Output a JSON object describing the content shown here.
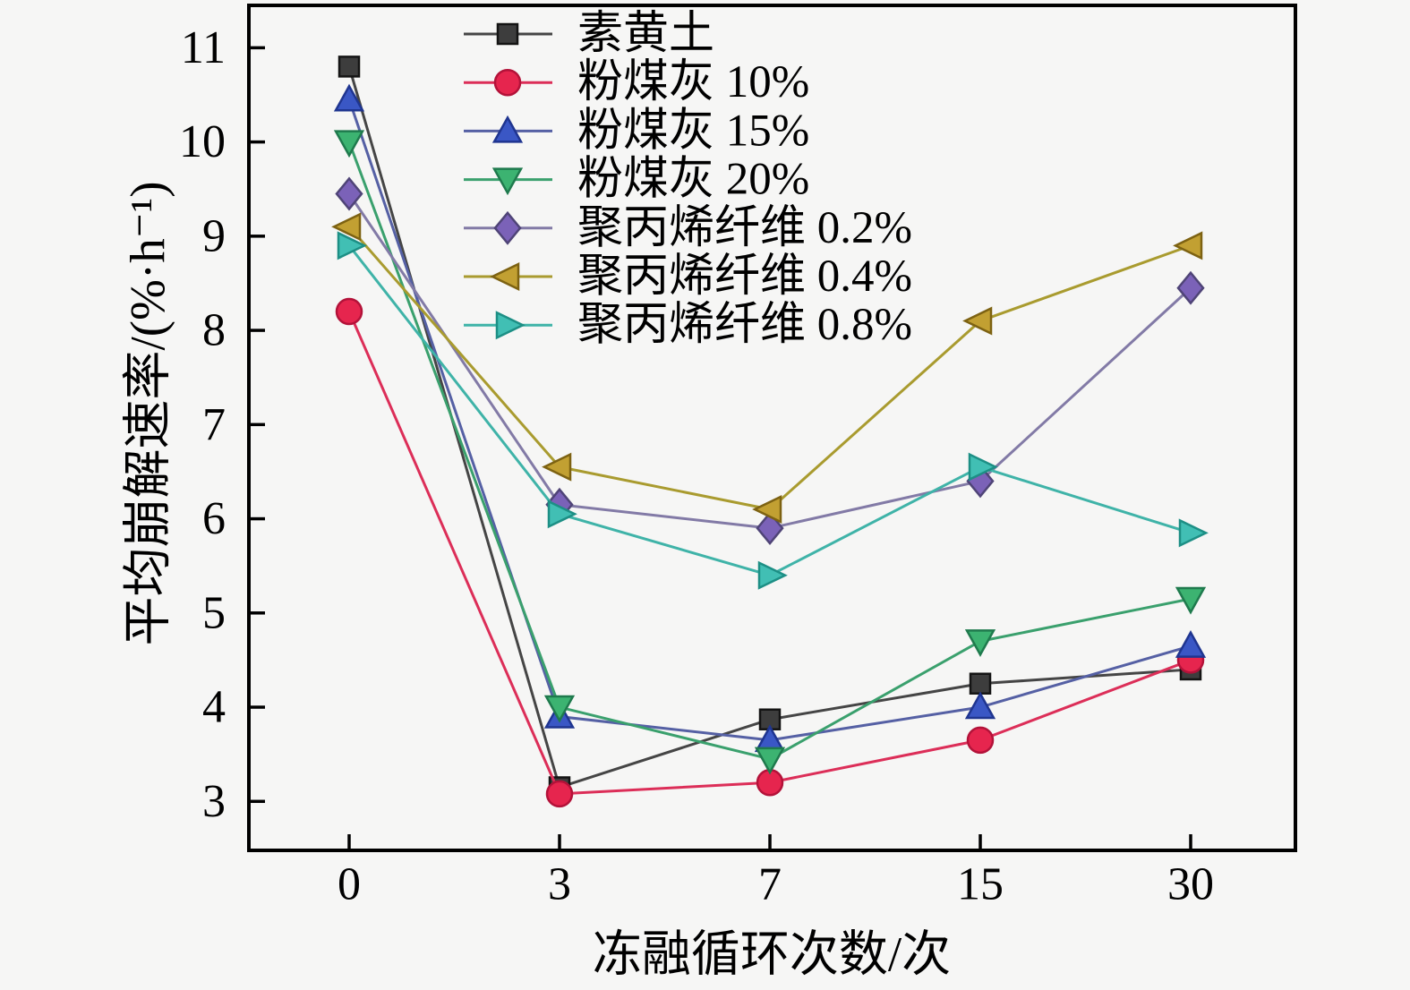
{
  "figure": {
    "background": "#f6f6f5",
    "axis_color": "#000000"
  },
  "chart_data": {
    "type": "line",
    "title": "",
    "xlabel": "冻融循环次数/次",
    "ylabel": "平均崩解速率/(%·h⁻¹)",
    "x_categories": [
      "0",
      "3",
      "7",
      "15",
      "30"
    ],
    "x_values": [
      0,
      3,
      7,
      15,
      30
    ],
    "y_ticks": [
      "3",
      "4",
      "5",
      "6",
      "7",
      "8",
      "9",
      "10",
      "11"
    ],
    "ylim": [
      2.48,
      11.45
    ],
    "grid": false,
    "legend_position": "inside-top-left",
    "series": [
      {
        "name": "素黄土",
        "marker": "square",
        "marker_color": "#3d3d3d",
        "marker_edge": "#141414",
        "line_color": "#454545",
        "values": [
          10.8,
          3.15,
          3.87,
          4.25,
          4.4
        ]
      },
      {
        "name": "粉煤灰 10%",
        "marker": "circle",
        "marker_color": "#e6254e",
        "marker_edge": "#b31239",
        "line_color": "#dc2e58",
        "values": [
          8.2,
          3.08,
          3.2,
          3.65,
          4.5
        ]
      },
      {
        "name": "粉煤灰 15%",
        "marker": "triangle-up",
        "marker_color": "#3a57c5",
        "marker_edge": "#1f3590",
        "line_color": "#5560a4",
        "values": [
          10.45,
          3.9,
          3.65,
          4.0,
          4.65
        ]
      },
      {
        "name": "粉煤灰 20%",
        "marker": "triangle-down",
        "marker_color": "#3cb371",
        "marker_edge": "#1f7a4d",
        "line_color": "#3aa06d",
        "values": [
          10.0,
          4.0,
          3.45,
          4.7,
          5.15
        ]
      },
      {
        "name": "聚丙烯纤维 0.2%",
        "marker": "diamond",
        "marker_color": "#7b62b8",
        "marker_edge": "#4f4477",
        "line_color": "#827aa6",
        "values": [
          9.45,
          6.15,
          5.9,
          6.4,
          8.45
        ]
      },
      {
        "name": "聚丙烯纤维 0.4%",
        "marker": "triangle-left",
        "marker_color": "#c2a032",
        "marker_edge": "#7d6212",
        "line_color": "#a99b2f",
        "values": [
          9.1,
          6.55,
          6.1,
          8.1,
          8.9
        ]
      },
      {
        "name": "聚丙烯纤维 0.8%",
        "marker": "triangle-right",
        "marker_color": "#41bfb4",
        "marker_edge": "#1d8f85",
        "line_color": "#3fb3a8",
        "values": [
          8.9,
          6.05,
          5.4,
          6.55,
          5.85
        ]
      }
    ]
  }
}
